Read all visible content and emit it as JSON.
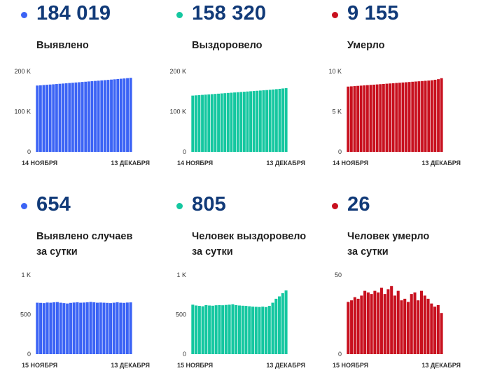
{
  "panels": [
    {
      "value": "184 019",
      "caption_lines": [
        "Выявлено"
      ],
      "color": "#3b63f5",
      "chart": {
        "type": "bar",
        "yticks": [
          "200 K",
          "100 K",
          "0"
        ],
        "ylim": [
          0,
          200000
        ],
        "x_start": "14 НОЯБРЯ",
        "x_end": "13 ДЕКАБРЯ",
        "values": [
          164800,
          165400,
          166100,
          166700,
          167300,
          167900,
          168600,
          169200,
          169800,
          170400,
          171100,
          171700,
          172400,
          173000,
          173700,
          174300,
          175000,
          175600,
          176300,
          176900,
          177600,
          178200,
          178900,
          179600,
          180300,
          181000,
          181700,
          182400,
          183200,
          184019
        ]
      }
    },
    {
      "value": "158 320",
      "caption_lines": [
        "Выздоровело"
      ],
      "color": "#14c7a0",
      "chart": {
        "type": "bar",
        "yticks": [
          "200 K",
          "100 K",
          "0"
        ],
        "ylim": [
          0,
          200000
        ],
        "x_start": "14 НОЯБРЯ",
        "x_end": "13 ДЕКАБРЯ",
        "values": [
          139800,
          140400,
          141000,
          141600,
          142200,
          142800,
          143400,
          144000,
          144600,
          145200,
          145800,
          146400,
          147000,
          147600,
          148200,
          148800,
          149400,
          150000,
          150600,
          151200,
          151800,
          152400,
          153000,
          153600,
          154300,
          155000,
          155800,
          156600,
          157500,
          158320
        ]
      }
    },
    {
      "value": "9 155",
      "caption_lines": [
        "Умерло"
      ],
      "color": "#c8101e",
      "chart": {
        "type": "bar",
        "yticks": [
          "10 K",
          "5 K",
          "0"
        ],
        "ylim": [
          0,
          10000
        ],
        "x_start": "14 НОЯБРЯ",
        "x_end": "13 ДЕКАБРЯ",
        "values": [
          8110,
          8140,
          8170,
          8200,
          8230,
          8260,
          8290,
          8320,
          8350,
          8380,
          8410,
          8440,
          8470,
          8500,
          8530,
          8560,
          8590,
          8620,
          8650,
          8680,
          8710,
          8740,
          8770,
          8800,
          8830,
          8860,
          8900,
          8960,
          9030,
          9155
        ]
      }
    },
    {
      "value": "654",
      "caption_lines": [
        "Выявлено случаев",
        "за сутки"
      ],
      "color": "#3b63f5",
      "chart": {
        "type": "bar",
        "yticks": [
          "1 K",
          "500",
          "0"
        ],
        "ylim": [
          0,
          1000
        ],
        "x_start": "15 НОЯБРЯ",
        "x_end": "13 ДЕКАБРЯ",
        "values": [
          650,
          648,
          645,
          652,
          650,
          655,
          658,
          650,
          645,
          640,
          648,
          652,
          655,
          650,
          652,
          655,
          660,
          655,
          650,
          652,
          650,
          648,
          645,
          650,
          655,
          650,
          648,
          652,
          654
        ]
      }
    },
    {
      "value": "805",
      "caption_lines": [
        "Человек выздоровело",
        "за сутки"
      ],
      "color": "#14c7a0",
      "chart": {
        "type": "bar",
        "yticks": [
          "1 K",
          "500",
          "0"
        ],
        "ylim": [
          0,
          1000
        ],
        "x_start": "15 НОЯБРЯ",
        "x_end": "13 ДЕКАБРЯ",
        "values": [
          625,
          615,
          610,
          605,
          620,
          615,
          612,
          618,
          620,
          618,
          622,
          625,
          630,
          620,
          615,
          612,
          610,
          605,
          600,
          598,
          596,
          600,
          595,
          610,
          650,
          700,
          730,
          770,
          805
        ]
      }
    },
    {
      "value": "26",
      "caption_lines": [
        "Человек умерло",
        "за сутки"
      ],
      "color": "#c8101e",
      "chart": {
        "type": "bar",
        "yticks": [
          "50",
          "",
          "0"
        ],
        "ylim": [
          0,
          50
        ],
        "x_start": "15 НОЯБРЯ",
        "x_end": "13 ДЕКАБРЯ",
        "values": [
          33,
          34,
          36,
          35,
          37,
          40,
          39,
          38,
          40,
          39,
          42,
          38,
          41,
          43,
          37,
          40,
          34,
          35,
          33,
          38,
          39,
          34,
          40,
          37,
          35,
          32,
          30,
          31,
          26
        ]
      }
    }
  ]
}
